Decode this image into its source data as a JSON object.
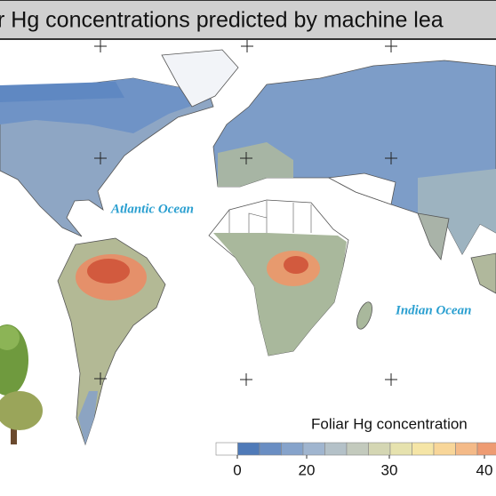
{
  "header": {
    "title": "r Hg concentrations predicted by machine lea"
  },
  "map": {
    "ocean_labels": [
      "Atlantic Ocean",
      "Indian Ocean"
    ]
  },
  "legend": {
    "title": "Foliar Hg concentration",
    "ticks": [
      0,
      20,
      30,
      40
    ],
    "colors": [
      "#ffffff",
      "#4f7ab8",
      "#6a8ec3",
      "#86a3cb",
      "#a0b5cf",
      "#b4c1c8",
      "#c3cabd",
      "#d4d6b3",
      "#e6e2ae",
      "#f5e5a6",
      "#f8d699",
      "#f4ba88",
      "#ee9b72"
    ]
  }
}
